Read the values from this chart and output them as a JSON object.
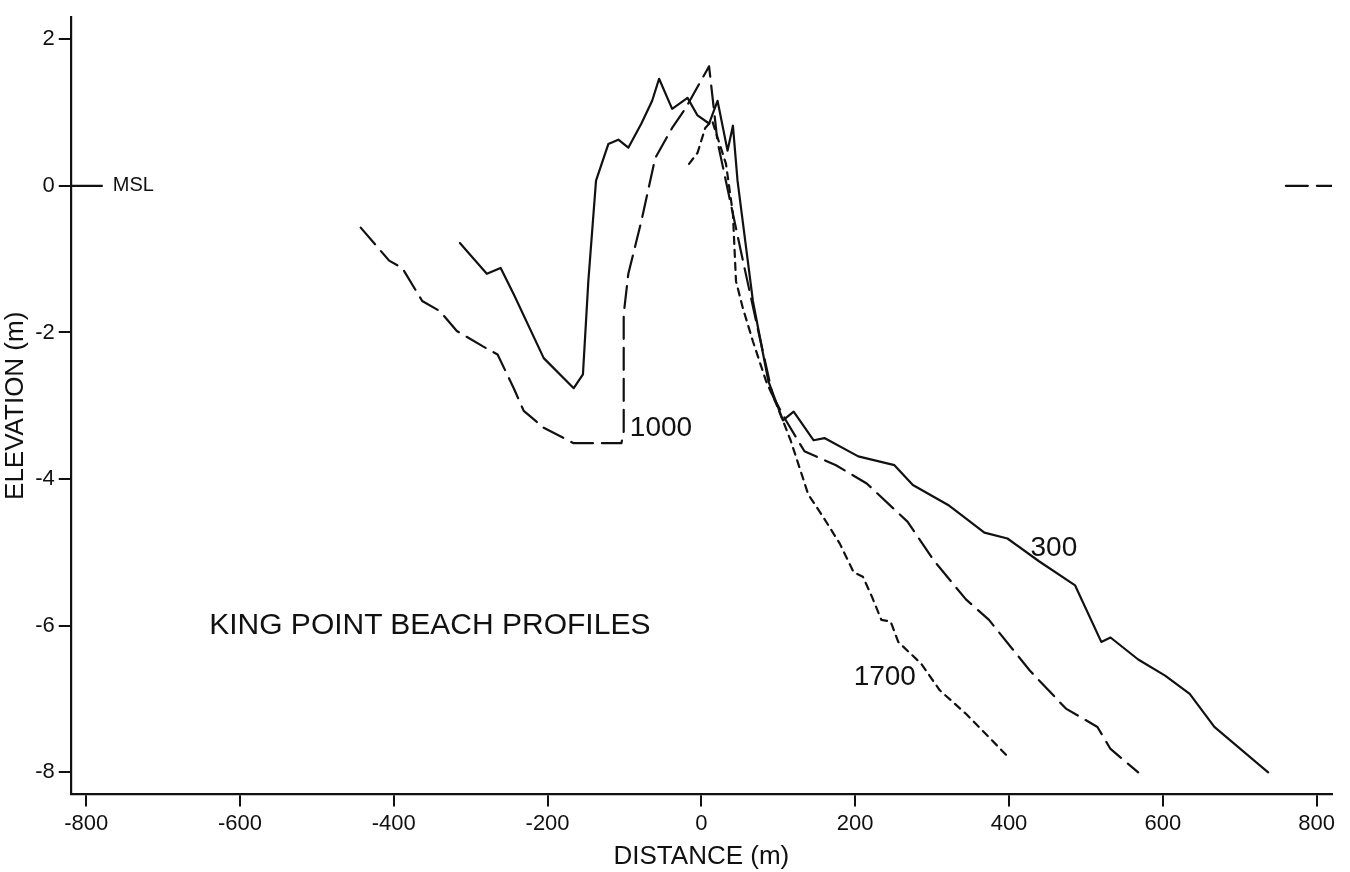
{
  "chart_data": {
    "type": "line",
    "title": "KING POINT BEACH PROFILES",
    "xlabel": "DISTANCE (m)",
    "ylabel": "ELEVATION (m)",
    "xlim": [
      -820,
      820
    ],
    "xticks": [
      -800,
      -600,
      -400,
      -200,
      0,
      200,
      400,
      600,
      800
    ],
    "ylim": [
      -8.3,
      2.3
    ],
    "yticks": [
      -8,
      -6,
      -4,
      -2,
      0,
      2
    ],
    "grid": false,
    "legend": false,
    "marker": "none",
    "ref_lines": [
      {
        "axis": "y",
        "value": 0,
        "label": "MSL"
      }
    ],
    "series": [
      {
        "name": "300",
        "color": "#111111",
        "line_style": "solid",
        "x": [
          -314,
          -279,
          -261,
          -244,
          -205,
          -166,
          -154,
          -147,
          -137,
          -121,
          -108,
          -95,
          -78,
          -64,
          -55,
          -38,
          -18,
          -5,
          10,
          21,
          34,
          41,
          47,
          67,
          87,
          106,
          120,
          146,
          160,
          204,
          251,
          275,
          322,
          368,
          398,
          439,
          486,
          520,
          532,
          568,
          603,
          635,
          667,
          737
        ],
        "values": [
          -0.78,
          -1.2,
          -1.12,
          -1.48,
          -2.35,
          -2.76,
          -2.57,
          -1.3,
          0.07,
          0.57,
          0.63,
          0.52,
          0.85,
          1.16,
          1.46,
          1.05,
          1.2,
          0.96,
          0.85,
          1.16,
          0.48,
          0.82,
          0.07,
          -1.57,
          -2.66,
          -3.2,
          -3.08,
          -3.47,
          -3.44,
          -3.69,
          -3.81,
          -4.08,
          -4.36,
          -4.73,
          -4.81,
          -5.12,
          -5.45,
          -6.22,
          -6.16,
          -6.46,
          -6.68,
          -6.93,
          -7.38,
          -8.0
        ]
      },
      {
        "name": "1000",
        "color": "#111111",
        "line_style": "dashed",
        "x": [
          -443,
          -406,
          -389,
          -363,
          -340,
          -318,
          -284,
          -265,
          -244,
          -231,
          -205,
          -166,
          -104,
          -101,
          -101,
          -95,
          -78,
          -60,
          -38,
          -21,
          10,
          21,
          54,
          74,
          93,
          110,
          134,
          175,
          215,
          268,
          303,
          344,
          374,
          427,
          474,
          515,
          532,
          568
        ],
        "values": [
          -0.57,
          -1.02,
          -1.12,
          -1.57,
          -1.71,
          -1.98,
          -2.19,
          -2.3,
          -2.76,
          -3.07,
          -3.3,
          -3.51,
          -3.51,
          -3.35,
          -1.75,
          -1.2,
          -0.48,
          0.38,
          0.79,
          1.05,
          1.63,
          0.6,
          -1.02,
          -1.98,
          -2.87,
          -3.2,
          -3.62,
          -3.81,
          -4.06,
          -4.58,
          -5.12,
          -5.64,
          -5.92,
          -6.61,
          -7.13,
          -7.38,
          -7.68,
          -8.0
        ]
      },
      {
        "name": "1700",
        "color": "#111111",
        "line_style": "dotted",
        "x": [
          -16,
          -5,
          5,
          14,
          32,
          41,
          45,
          54,
          67,
          84,
          98,
          116,
          139,
          158,
          180,
          198,
          210,
          222,
          234,
          246,
          256,
          286,
          310,
          344,
          400
        ],
        "values": [
          0.3,
          0.45,
          0.79,
          0.89,
          0.3,
          -0.38,
          -1.3,
          -1.67,
          -2.12,
          -2.66,
          -2.99,
          -3.47,
          -4.21,
          -4.51,
          -4.88,
          -5.27,
          -5.33,
          -5.61,
          -5.92,
          -5.94,
          -6.22,
          -6.52,
          -6.88,
          -7.2,
          -7.8
        ]
      },
      {
        "color": "#111111",
        "line_style": "dashed",
        "x": [
          760,
          820
        ],
        "values": [
          0,
          0
        ]
      }
    ]
  }
}
